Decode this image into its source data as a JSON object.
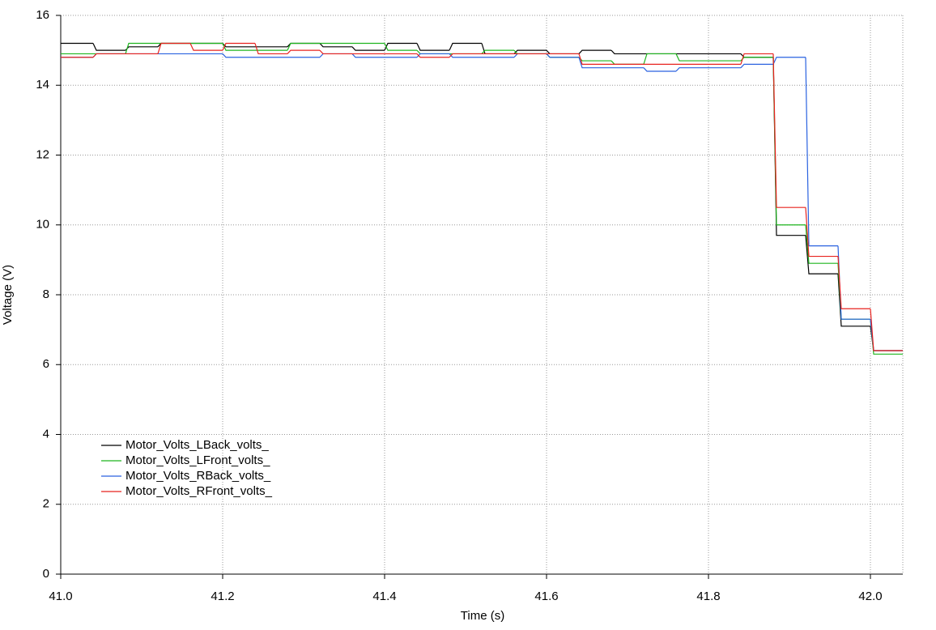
{
  "chart_data": {
    "type": "line",
    "xlabel": "Time (s)",
    "ylabel": "Voltage (V)",
    "x": [
      41.0,
      41.04,
      41.08,
      41.12,
      41.16,
      41.2,
      41.24,
      41.28,
      41.32,
      41.36,
      41.4,
      41.44,
      41.48,
      41.52,
      41.56,
      41.6,
      41.64,
      41.68,
      41.72,
      41.76,
      41.8,
      41.84,
      41.88,
      41.92,
      41.96,
      42.0
    ],
    "series": [
      {
        "name": "Motor_Volts_LBack_volts_",
        "color": "#000000",
        "values": [
          15.2,
          15.0,
          15.1,
          15.2,
          15.2,
          15.1,
          15.1,
          15.2,
          15.1,
          15.0,
          15.2,
          15.0,
          15.2,
          14.9,
          15.0,
          14.9,
          15.0,
          14.9,
          14.9,
          14.9,
          14.9,
          14.8,
          9.7,
          8.6,
          7.1,
          6.4
        ]
      },
      {
        "name": "Motor_Volts_LFront_volts_",
        "color": "#1fb51f",
        "values": [
          14.9,
          14.9,
          15.2,
          15.2,
          15.2,
          15.0,
          15.0,
          15.2,
          15.2,
          15.2,
          15.0,
          14.9,
          14.9,
          15.0,
          14.9,
          14.8,
          14.7,
          14.6,
          14.9,
          14.7,
          14.7,
          14.8,
          10.0,
          8.9,
          7.3,
          6.3
        ]
      },
      {
        "name": "Motor_Volts_RBack_volts_",
        "color": "#2a62e0",
        "values": [
          14.8,
          14.9,
          14.9,
          14.9,
          14.9,
          14.8,
          14.8,
          14.8,
          14.9,
          14.8,
          14.8,
          14.9,
          14.8,
          14.8,
          14.9,
          14.8,
          14.5,
          14.5,
          14.4,
          14.5,
          14.5,
          14.6,
          14.8,
          9.4,
          7.3,
          6.4
        ]
      },
      {
        "name": "Motor_Volts_RFront_volts_",
        "color": "#e8231f",
        "values": [
          14.8,
          14.9,
          14.9,
          15.2,
          15.0,
          15.2,
          14.9,
          15.0,
          14.9,
          14.9,
          14.9,
          14.8,
          14.9,
          14.9,
          14.9,
          14.9,
          14.6,
          14.6,
          14.6,
          14.6,
          14.6,
          14.9,
          10.5,
          9.1,
          7.6,
          6.4
        ]
      }
    ],
    "xlim": [
      41.0,
      42.04
    ],
    "ylim": [
      0,
      16
    ],
    "xticks": [
      {
        "value": 41.0,
        "label": "41.0"
      },
      {
        "value": 41.2,
        "label": "41.2"
      },
      {
        "value": 41.4,
        "label": "41.4"
      },
      {
        "value": 41.6,
        "label": "41.6"
      },
      {
        "value": 41.8,
        "label": "41.8"
      },
      {
        "value": 42.0,
        "label": "42.0"
      }
    ],
    "yticks": [
      0,
      2,
      4,
      6,
      8,
      10,
      12,
      14,
      16
    ],
    "grid": true,
    "legend": "lower left"
  }
}
